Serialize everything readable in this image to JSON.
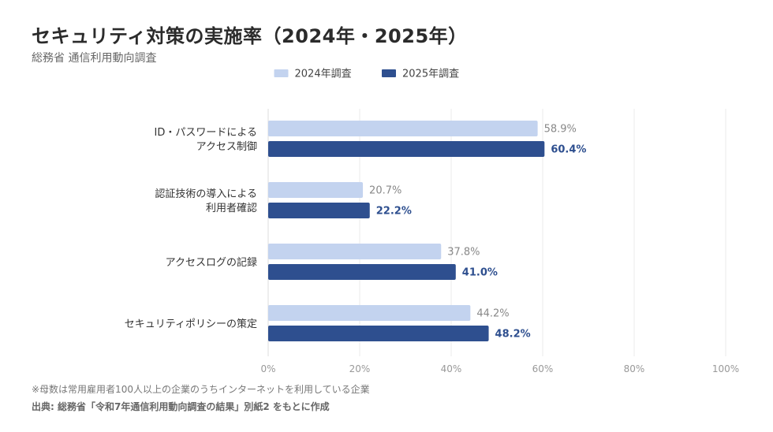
{
  "chart_data": {
    "type": "bar",
    "orientation": "horizontal",
    "title": "セキュリティ対策の実施率（2024年・2025年）",
    "subtitle": "総務省 通信利用動向調査",
    "categories": [
      [
        "ID・パスワードによる",
        "アクセス制御"
      ],
      [
        "認証技術の導入による",
        "利用者確認"
      ],
      [
        "アクセスログの記録"
      ],
      [
        "セキュリティポリシーの策定"
      ]
    ],
    "series": [
      {
        "name": "2024年調査",
        "color": "#c3d3ef",
        "label_color": "#888888",
        "values": [
          58.9,
          20.7,
          37.8,
          44.2
        ]
      },
      {
        "name": "2025年調査",
        "color": "#2e4f8f",
        "label_color": "#2e4f8f",
        "values": [
          60.4,
          22.2,
          41.0,
          48.2
        ]
      }
    ],
    "xlim": [
      0,
      100
    ],
    "xticks": [
      0,
      20,
      40,
      60,
      80,
      100
    ],
    "tick_format": "%",
    "value_format": "%",
    "grid": "vertical",
    "legend_position": "top-center"
  },
  "notes": {
    "footnote": "※母数は常用雇用者100人以上の企業のうちインターネットを利用している企業",
    "source": "出典: 総務省「令和7年通信利用動向調査の結果」別紙2 をもとに作成"
  }
}
